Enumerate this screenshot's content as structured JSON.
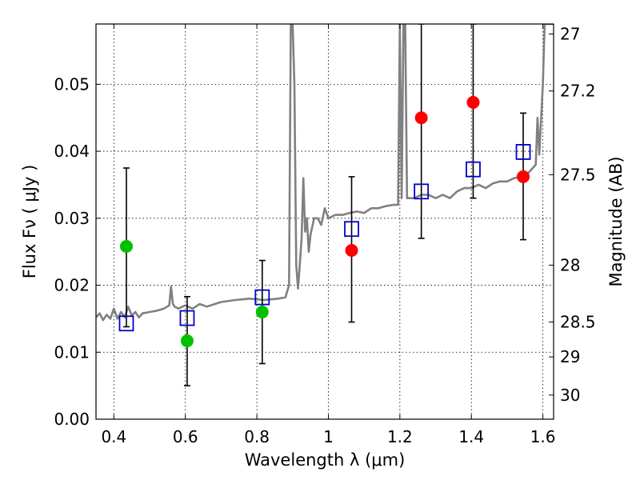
{
  "chart_data": {
    "type": "scatter",
    "xlabel": "Wavelength  λ (μm)",
    "ylabel": "Flux  Fν  ( μJy )",
    "ylabel_right": "Magnitude (AB)",
    "xlim": [
      0.35,
      1.63
    ],
    "ylim": [
      0.0,
      0.059
    ],
    "x_ticks": [
      0.4,
      0.6,
      0.8,
      1.0,
      1.2,
      1.4,
      1.6
    ],
    "x_tick_labels": [
      "0.4",
      "0.6",
      "0.8",
      "1",
      "1.2",
      "1.4",
      "1.6"
    ],
    "y_ticks": [
      0.0,
      0.01,
      0.02,
      0.03,
      0.04,
      0.05
    ],
    "y_tick_labels": [
      "0.00",
      "0.01",
      "0.02",
      "0.03",
      "0.04",
      "0.05"
    ],
    "right_ticks": [
      {
        "flux": 0.0575,
        "label": "27"
      },
      {
        "flux": 0.049,
        "label": "27.2"
      },
      {
        "flux": 0.0365,
        "label": "27.5"
      },
      {
        "flux": 0.023,
        "label": "28"
      },
      {
        "flux": 0.0145,
        "label": "28.5"
      },
      {
        "flux": 0.0093,
        "label": "29"
      },
      {
        "flux": 0.0036,
        "label": "30"
      }
    ],
    "grid": true,
    "series": [
      {
        "marker": "line",
        "color": "#808080",
        "x": [
          0.35,
          0.36,
          0.37,
          0.38,
          0.39,
          0.4,
          0.41,
          0.42,
          0.43,
          0.44,
          0.45,
          0.46,
          0.47,
          0.48,
          0.5,
          0.52,
          0.54,
          0.555,
          0.56,
          0.565,
          0.57,
          0.58,
          0.6,
          0.62,
          0.64,
          0.66,
          0.7,
          0.74,
          0.78,
          0.82,
          0.86,
          0.88,
          0.89,
          0.895,
          0.9,
          0.905,
          0.91,
          0.915,
          0.92,
          0.925,
          0.93,
          0.935,
          0.94,
          0.945,
          0.95,
          0.96,
          0.97,
          0.98,
          0.99,
          1.0,
          1.02,
          1.04,
          1.06,
          1.08,
          1.1,
          1.12,
          1.14,
          1.16,
          1.18,
          1.195,
          1.2,
          1.205,
          1.21,
          1.215,
          1.22,
          1.24,
          1.26,
          1.28,
          1.3,
          1.32,
          1.34,
          1.36,
          1.38,
          1.4,
          1.42,
          1.44,
          1.46,
          1.48,
          1.5,
          1.52,
          1.54,
          1.56,
          1.58,
          1.585,
          1.59,
          1.6,
          1.605,
          1.61,
          1.62,
          1.63
        ],
        "y": [
          0.0152,
          0.0158,
          0.0148,
          0.0156,
          0.015,
          0.0165,
          0.015,
          0.016,
          0.0152,
          0.0168,
          0.0155,
          0.016,
          0.0152,
          0.0158,
          0.016,
          0.0162,
          0.0165,
          0.017,
          0.0198,
          0.0172,
          0.0168,
          0.0165,
          0.017,
          0.0165,
          0.0172,
          0.0168,
          0.0175,
          0.0178,
          0.018,
          0.0178,
          0.018,
          0.0182,
          0.02,
          0.059,
          0.059,
          0.05,
          0.023,
          0.0195,
          0.023,
          0.027,
          0.036,
          0.028,
          0.03,
          0.025,
          0.0275,
          0.03,
          0.03,
          0.029,
          0.0315,
          0.03,
          0.0305,
          0.0305,
          0.0308,
          0.031,
          0.0308,
          0.0315,
          0.0315,
          0.0318,
          0.032,
          0.032,
          0.059,
          0.033,
          0.059,
          0.059,
          0.033,
          0.033,
          0.0335,
          0.0335,
          0.033,
          0.0335,
          0.033,
          0.034,
          0.0345,
          0.0345,
          0.035,
          0.0345,
          0.0352,
          0.0355,
          0.0355,
          0.036,
          0.0362,
          0.0368,
          0.038,
          0.045,
          0.0395,
          0.05,
          0.059,
          0.059,
          0.059,
          0.059
        ]
      },
      {
        "marker": "square",
        "color": "#0000cc",
        "x": [
          0.435,
          0.605,
          0.815,
          1.065,
          1.26,
          1.405,
          1.545
        ],
        "y": [
          0.0143,
          0.0151,
          0.0182,
          0.0284,
          0.034,
          0.0373,
          0.0399
        ]
      },
      {
        "marker": "circle",
        "color": "#00c000",
        "x": [
          0.435,
          0.605,
          0.815
        ],
        "y": [
          0.0258,
          0.0117,
          0.016
        ]
      },
      {
        "marker": "circle",
        "color": "#ff0000",
        "x": [
          1.065,
          1.26,
          1.405,
          1.545
        ],
        "y": [
          0.0252,
          0.045,
          0.0473,
          0.0362
        ]
      }
    ],
    "errorbars": [
      {
        "x": 0.435,
        "low": 0.0138,
        "high": 0.0375
      },
      {
        "x": 0.605,
        "low": 0.005,
        "high": 0.0183
      },
      {
        "x": 0.815,
        "low": 0.0083,
        "high": 0.0237
      },
      {
        "x": 1.065,
        "low": 0.0145,
        "high": 0.0362
      },
      {
        "x": 1.26,
        "low": 0.027,
        "high": 0.059
      },
      {
        "x": 1.405,
        "low": 0.033,
        "high": 0.059
      },
      {
        "x": 1.545,
        "low": 0.0268,
        "high": 0.0457
      }
    ]
  }
}
